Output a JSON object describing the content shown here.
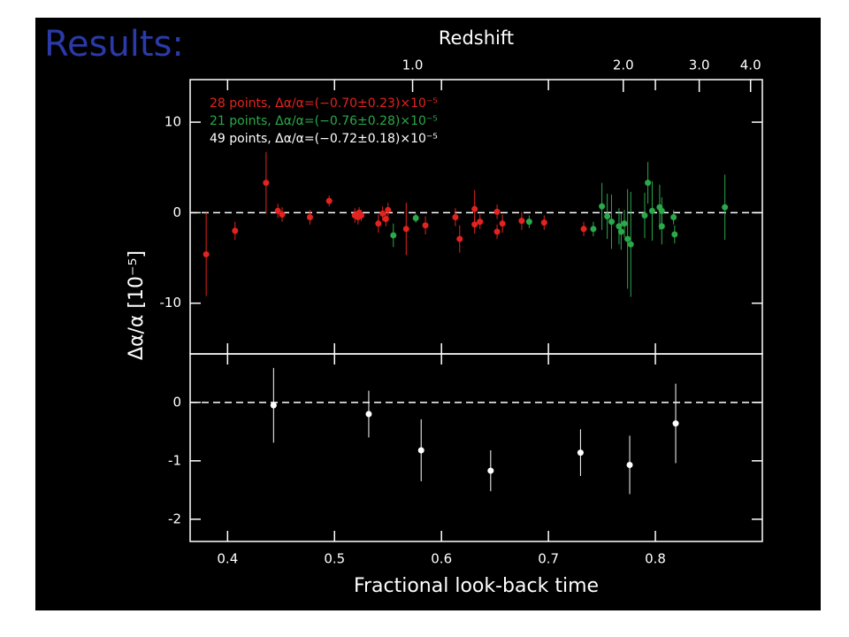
{
  "slide_title": "Results:",
  "chart_data": [
    {
      "type": "errorbar",
      "x2label": "Redshift",
      "ylabel": "Δα/α [10⁻⁵]",
      "xlim": [
        0.365,
        0.9
      ],
      "ylim": [
        -15.6,
        14.7
      ],
      "xticks": [
        0.4,
        0.5,
        0.6,
        0.7,
        0.8
      ],
      "x2ticks": [
        {
          "value": 0.573,
          "label": "1.0"
        },
        {
          "value": 0.77,
          "label": "2.0"
        },
        {
          "value": 0.841,
          "label": "3.0"
        },
        {
          "value": 0.889,
          "label": "4.0"
        }
      ],
      "yticks": [
        -10,
        0,
        10
      ],
      "hline": 0,
      "series": [
        {
          "name": "28 points, Δα/α=(−0.70±0.23)×10⁻⁵",
          "color": "#e2231f",
          "x": [
            0.38,
            0.407,
            0.436,
            0.447,
            0.451,
            0.477,
            0.495,
            0.519,
            0.522,
            0.525,
            0.541,
            0.545,
            0.55,
            0.567,
            0.585,
            0.613,
            0.617,
            0.631,
            0.631,
            0.652,
            0.652,
            0.657,
            0.675,
            0.696,
            0.733,
            0.636,
            0.548,
            0.523
          ],
          "values": [
            -4.6,
            -2.0,
            3.3,
            0.2,
            -0.2,
            -0.5,
            1.3,
            -0.3,
            -0.5,
            -0.3,
            -1.2,
            -0.1,
            0.3,
            -1.8,
            -1.4,
            -0.5,
            -2.9,
            0.4,
            -1.3,
            0.1,
            -2.1,
            -1.2,
            -0.9,
            -1.1,
            -1.8,
            -1.0,
            -0.7,
            0.0
          ],
          "errors": [
            4.6,
            1.0,
            3.4,
            0.8,
            0.8,
            0.8,
            0.6,
            0.8,
            0.8,
            0.6,
            1.0,
            0.8,
            0.8,
            2.9,
            1.0,
            1.0,
            1.5,
            2.1,
            1.0,
            0.8,
            0.8,
            1.0,
            1.0,
            0.8,
            0.8,
            0.8,
            0.8,
            0.6
          ]
        },
        {
          "name": "21 points, Δα/α=(−0.76±0.28)×10⁻⁵",
          "color": "#2aa84a",
          "x": [
            0.555,
            0.576,
            0.682,
            0.742,
            0.75,
            0.755,
            0.759,
            0.766,
            0.768,
            0.771,
            0.774,
            0.777,
            0.79,
            0.793,
            0.797,
            0.804,
            0.806,
            0.806,
            0.817,
            0.818,
            0.865
          ],
          "values": [
            -2.5,
            -0.6,
            -1.0,
            -1.8,
            0.7,
            -0.4,
            -1.0,
            -1.5,
            -2.1,
            -1.2,
            -2.9,
            -3.5,
            -0.3,
            3.3,
            0.2,
            0.6,
            0.2,
            -1.5,
            -0.5,
            -2.4,
            0.6
          ],
          "errors": [
            1.3,
            0.5,
            0.7,
            0.8,
            2.6,
            2.5,
            3.0,
            2.0,
            2.0,
            1.5,
            5.5,
            5.8,
            2.5,
            2.3,
            3.3,
            2.5,
            1.5,
            2.0,
            0.8,
            1.0,
            3.6
          ]
        }
      ]
    },
    {
      "type": "errorbar",
      "xlabel": "Fractional look-back time",
      "xlim": [
        0.365,
        0.9
      ],
      "ylim": [
        -2.38,
        0.83
      ],
      "xticks": [
        0.4,
        0.5,
        0.6,
        0.7,
        0.8
      ],
      "yticks": [
        -2,
        -1,
        0
      ],
      "hline": 0,
      "series": [
        {
          "name": "49 points, Δα/α=(−0.72±0.18)×10⁻⁵",
          "color": "#ffffff",
          "x": [
            0.443,
            0.532,
            0.581,
            0.646,
            0.73,
            0.776,
            0.819
          ],
          "values": [
            -0.05,
            -0.2,
            -0.82,
            -1.17,
            -0.86,
            -1.07,
            -0.36
          ],
          "errors": [
            0.64,
            0.4,
            0.53,
            0.35,
            0.4,
            0.5,
            0.68
          ]
        }
      ]
    }
  ]
}
